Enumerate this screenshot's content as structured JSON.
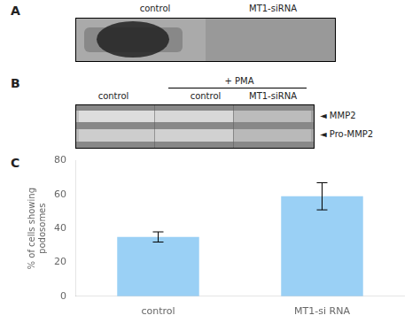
{
  "chart_data": {
    "type": "bar",
    "annotations": [
      "A",
      "control",
      "MT1-siRNA",
      "B",
      "+ PMA",
      "control",
      "control",
      "MT1-siRNA",
      "◄ MMP2",
      "◄ Pro-MMP2",
      "C"
    ],
    "categories": [
      "control",
      "MT1-si RNA"
    ],
    "values": [
      35,
      59
    ],
    "errors": [
      3,
      8
    ],
    "ylabel": "% of cells showing\npodosomes",
    "ylim": [
      0,
      80
    ],
    "yticks": [
      0,
      20,
      40,
      60,
      80
    ],
    "grid": false
  }
}
